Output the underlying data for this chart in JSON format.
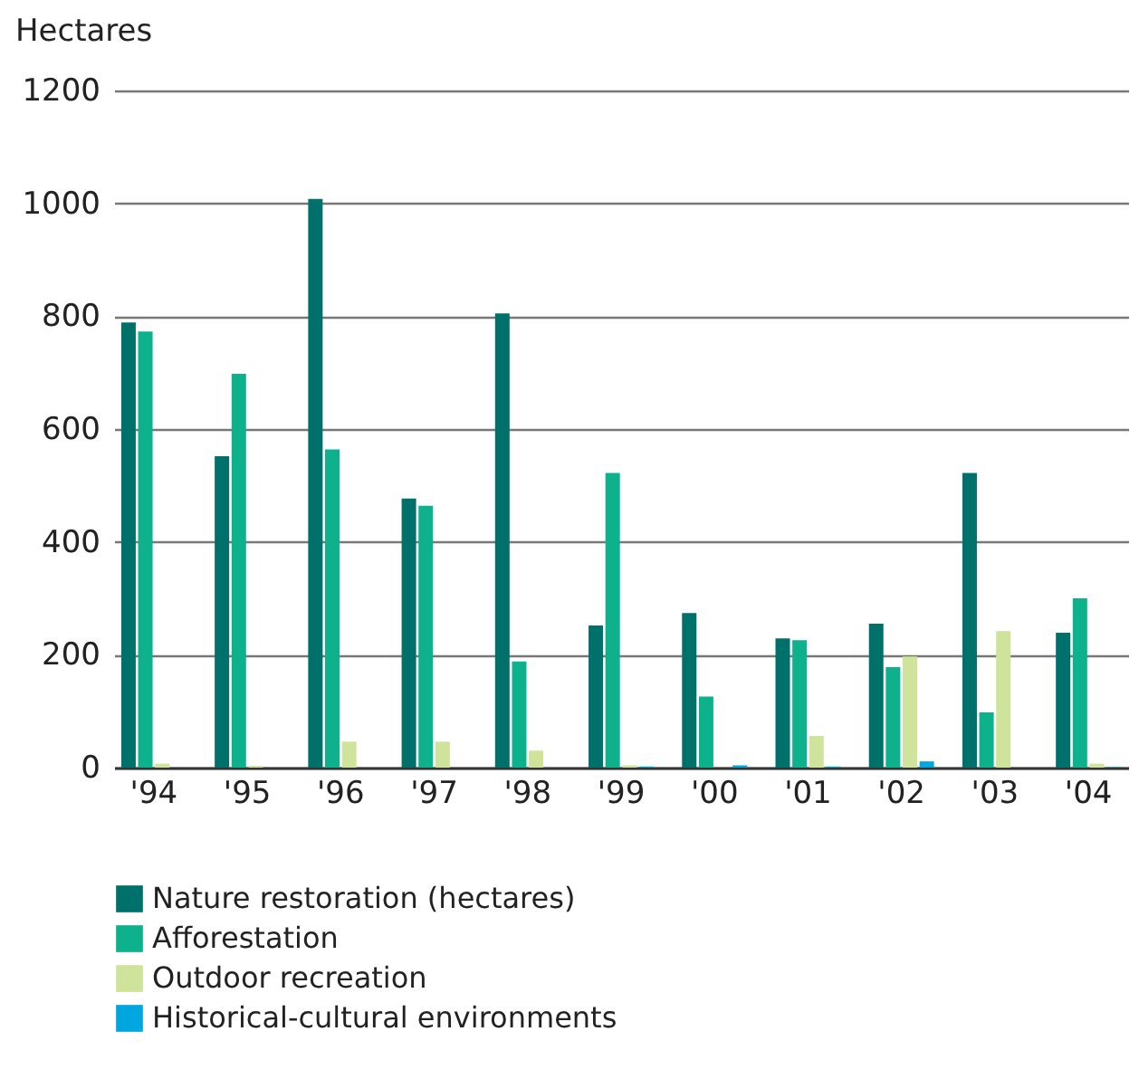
{
  "chart_data": {
    "type": "bar",
    "ylabel": "Hectares",
    "categories": [
      "'94",
      "'95",
      "'96",
      "'97",
      "'98",
      "'99",
      "'00",
      "'01",
      "'02",
      "'03",
      "'04"
    ],
    "series": [
      {
        "name": "Nature restoration (hectares)",
        "color": "#00706a",
        "values": [
          789,
          552,
          1008,
          477,
          805,
          252,
          274,
          229,
          255,
          522,
          239
        ]
      },
      {
        "name": "Afforestation",
        "color": "#0db28c",
        "values": [
          773,
          698,
          564,
          464,
          188,
          522,
          126,
          226,
          178,
          98,
          300
        ]
      },
      {
        "name": "Outdoor recreation",
        "color": "#cfe39a",
        "values": [
          7,
          3,
          46,
          46,
          30,
          4,
          0,
          56,
          197,
          242,
          7
        ]
      },
      {
        "name": "Historical-cultural environments",
        "color": "#00a6e0",
        "values": [
          0,
          0,
          0,
          0,
          0,
          2,
          4,
          2,
          11,
          0,
          1
        ]
      }
    ],
    "ylim": [
      0,
      1200
    ],
    "yticks": [
      0,
      200,
      400,
      600,
      800,
      1000,
      1200
    ],
    "grid": "y",
    "legend": "bottom left"
  }
}
